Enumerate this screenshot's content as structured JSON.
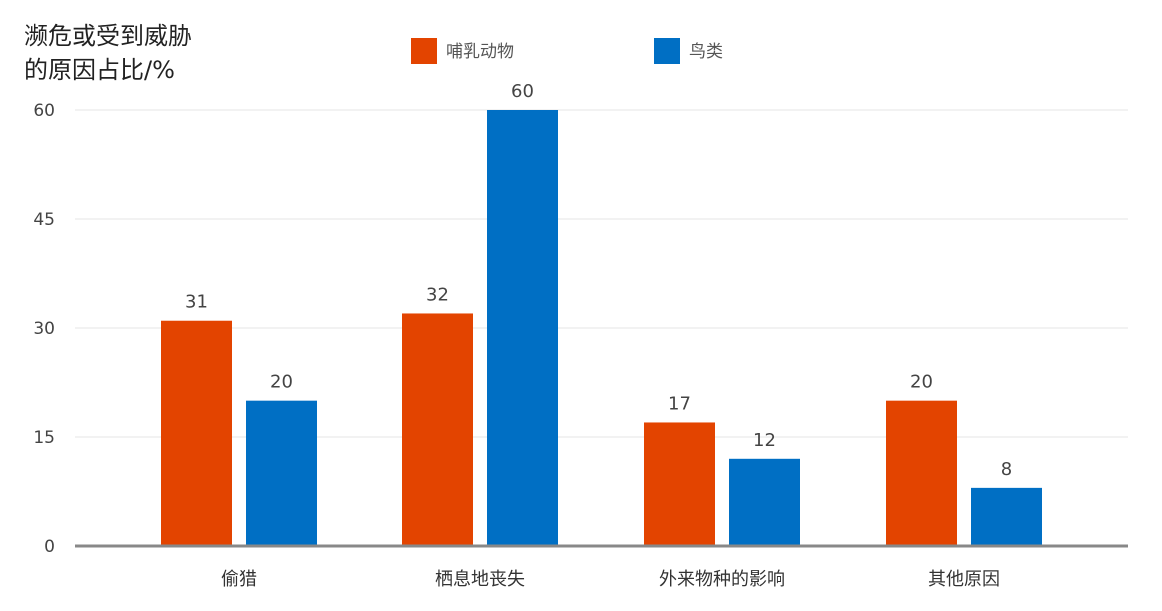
{
  "chart_data": {
    "type": "bar",
    "ylabel_lines": [
      "濒危或受到威胁",
      "的原因占比/%"
    ],
    "categories": [
      "偷猎",
      "栖息地丧失",
      "外来物种的影响",
      "其他原因"
    ],
    "series": [
      {
        "name": "哺乳动物",
        "color": "#E34400",
        "values": [
          31,
          32,
          17,
          20
        ]
      },
      {
        "name": "鸟类",
        "color": "#006FC4",
        "values": [
          20,
          60,
          12,
          8
        ]
      }
    ],
    "yticks": [
      0,
      15,
      30,
      45,
      60
    ],
    "ylim": [
      0,
      60
    ],
    "grid": true,
    "legend_position": "top"
  },
  "colors": {
    "grid": "#E5E5E5",
    "axis": "#888888"
  }
}
